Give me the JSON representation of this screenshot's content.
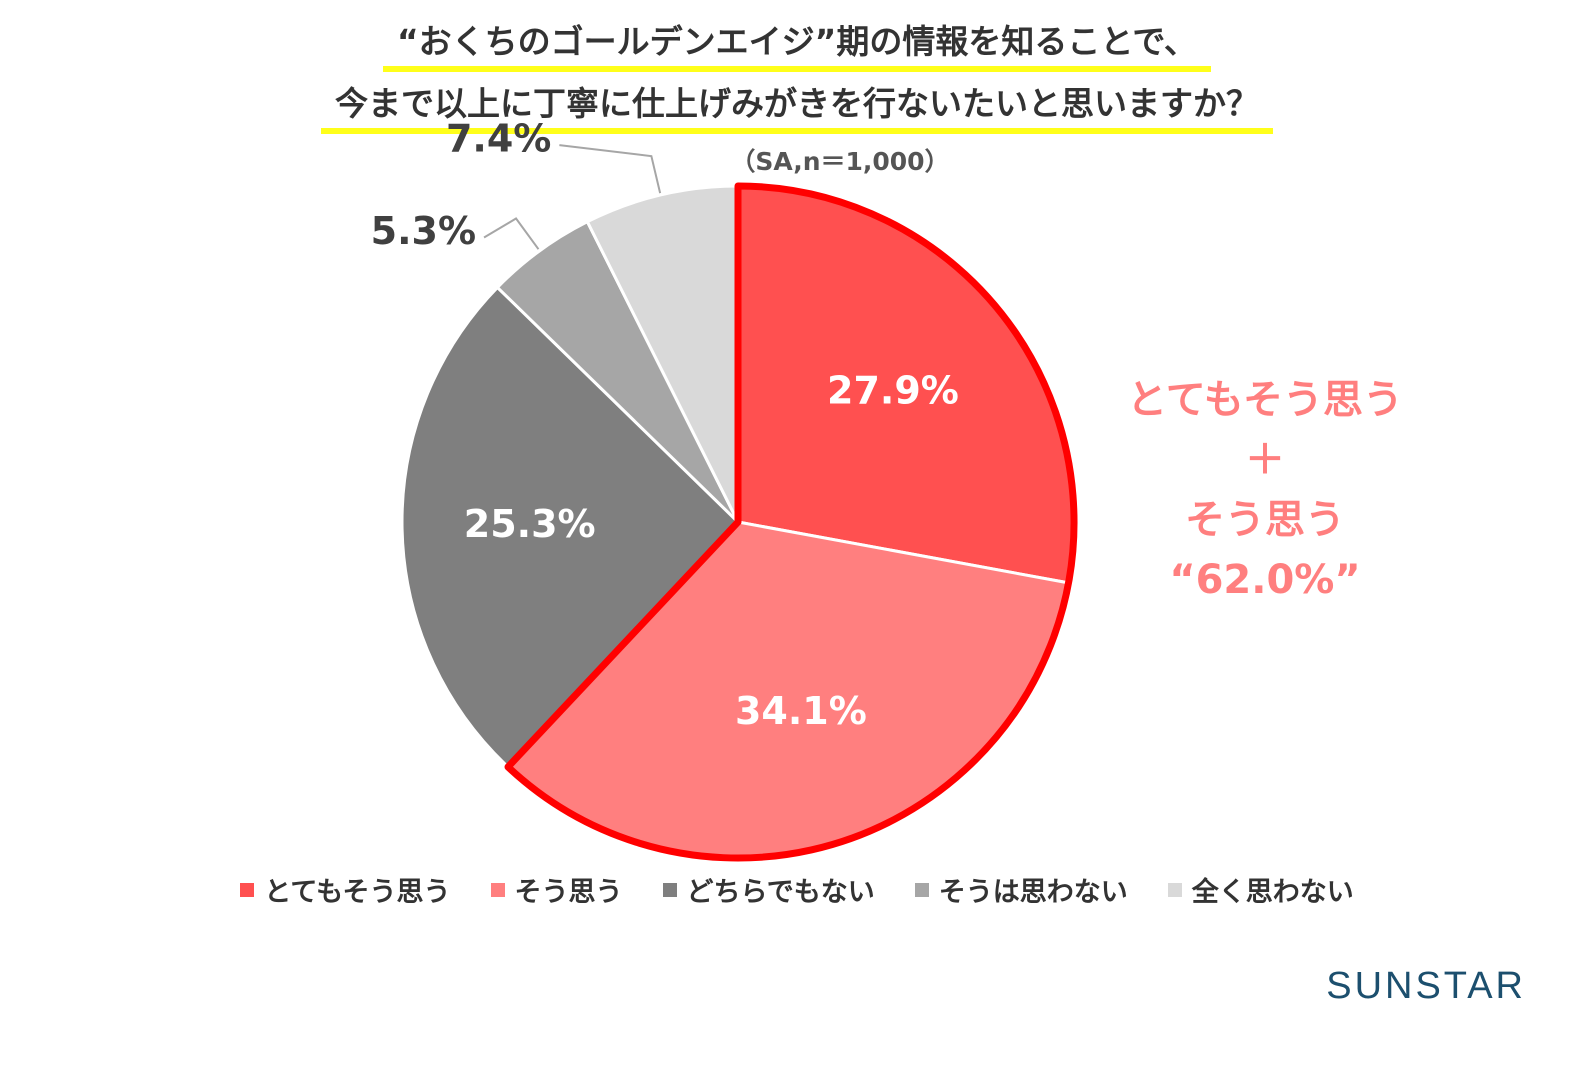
{
  "title": {
    "line1": "“おくちのゴールデンエイジ”期の情報を知ることで、",
    "line2": "今まで以上に丁寧に仕上げみがきを行ないたいと思いますか？",
    "subtitle": "（SA,n＝1,000）"
  },
  "chart_data": {
    "type": "pie",
    "categories": [
      "とてもそう思う",
      "そう思う",
      "どちらでもない",
      "そうは思わない",
      "全く思わない"
    ],
    "values": [
      27.9,
      34.1,
      25.3,
      5.3,
      7.4
    ],
    "labels": [
      "27.9%",
      "34.1%",
      "25.3%",
      "5.3%",
      "7.4%"
    ],
    "colors": [
      "#ff5050",
      "#ff7f7f",
      "#7f7f7f",
      "#a6a6a6",
      "#d9d9d9"
    ],
    "label_colors": [
      "#ffffff",
      "#ffffff",
      "#ffffff",
      "#404040",
      "#404040"
    ],
    "highlight_colors": "#ff0000",
    "legend_position": "bottom"
  },
  "callout": {
    "line1": "とてもそう思う",
    "line2": "＋",
    "line3": "そう思う",
    "line4": "“62.0%”"
  },
  "brand": "SUNSTAR"
}
